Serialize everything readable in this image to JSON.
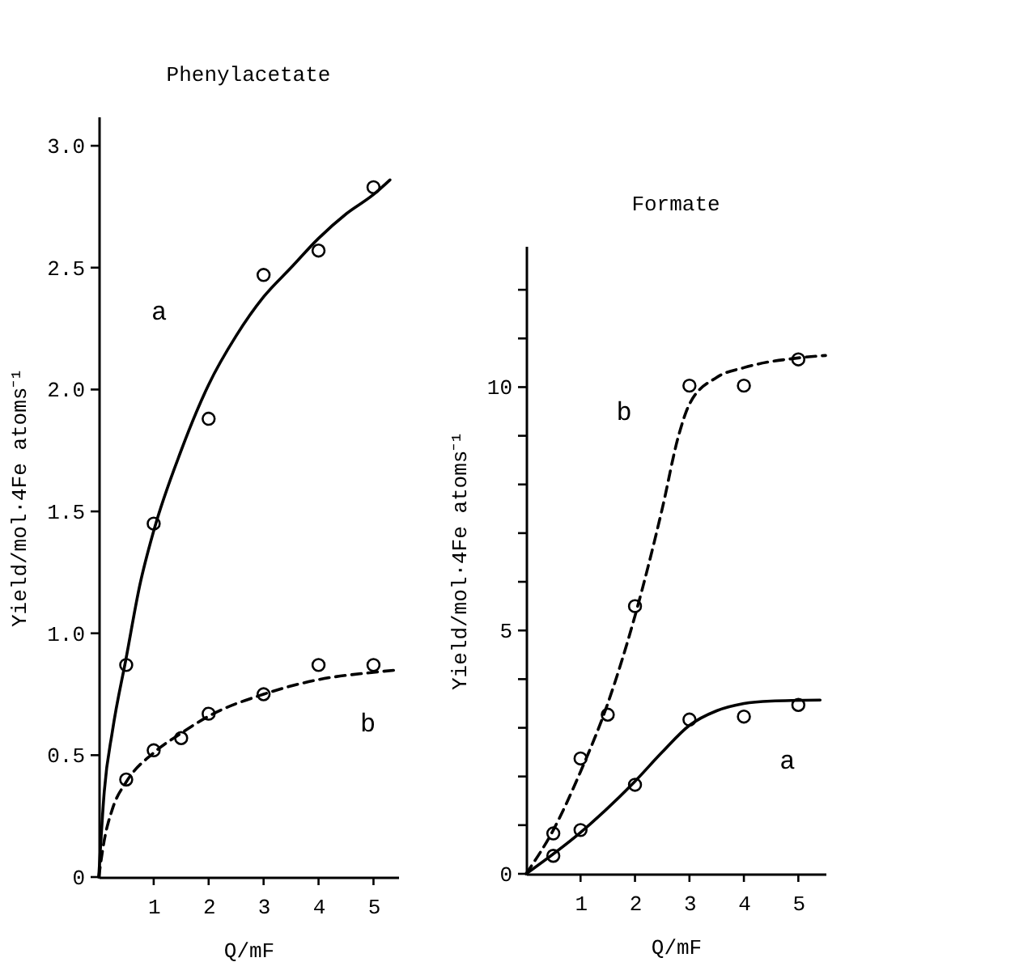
{
  "chart_data": [
    {
      "type": "scatter",
      "title": "Phenylacetate",
      "xlabel": "Q/mF",
      "ylabel": "Yield/mol·4Fe atoms⁻¹",
      "xlim": [
        0,
        5.45
      ],
      "ylim": [
        0,
        3.12
      ],
      "xticks": [
        1,
        2,
        3,
        4,
        5
      ],
      "yticks": [
        {
          "value": 0,
          "label": "0"
        },
        {
          "value": 0.5,
          "label": "0.5"
        },
        {
          "value": 1,
          "label": "1.0"
        },
        {
          "value": 1.5,
          "label": "1.5"
        },
        {
          "value": 2,
          "label": "2.0"
        },
        {
          "value": 2.5,
          "label": "2.5"
        },
        {
          "value": 3,
          "label": "3.0"
        }
      ],
      "grid": false,
      "series": [
        {
          "type": "scatter",
          "marker": "circle",
          "color": "#000000",
          "x": [
            0.5,
            1,
            2,
            3,
            4,
            5
          ],
          "values": [
            0.87,
            1.45,
            1.88,
            2.47,
            2.57,
            2.83
          ]
        },
        {
          "type": "line",
          "name": "a",
          "marker": "none",
          "line_style": "solid",
          "color": "#000000",
          "x": [
            0,
            0.1,
            0.25,
            0.5,
            0.75,
            1,
            1.5,
            2,
            2.5,
            3,
            3.5,
            4,
            4.5,
            5,
            5.3
          ],
          "values": [
            0,
            0.35,
            0.6,
            0.9,
            1.2,
            1.42,
            1.75,
            2.02,
            2.22,
            2.38,
            2.5,
            2.62,
            2.72,
            2.8,
            2.86
          ]
        },
        {
          "type": "scatter",
          "marker": "circle",
          "color": "#000000",
          "x": [
            0.5,
            1,
            1.5,
            2,
            3,
            4,
            5
          ],
          "values": [
            0.4,
            0.52,
            0.57,
            0.67,
            0.75,
            0.87,
            0.87
          ]
        },
        {
          "type": "line",
          "name": "b",
          "marker": "none",
          "line_style": "dashed",
          "color": "#000000",
          "x": [
            0,
            0.1,
            0.25,
            0.5,
            1,
            1.5,
            2,
            3,
            4,
            5,
            5.45
          ],
          "values": [
            0,
            0.15,
            0.28,
            0.39,
            0.51,
            0.59,
            0.66,
            0.75,
            0.81,
            0.84,
            0.85
          ]
        }
      ]
    },
    {
      "type": "scatter",
      "title": "Formate",
      "xlabel": "Q/mF",
      "ylabel": "Yield/mol·4Fe atoms⁻¹",
      "xlim": [
        0,
        5.5
      ],
      "ylim": [
        0,
        12.9
      ],
      "xticks": [
        1,
        2,
        3,
        4,
        5
      ],
      "yticks": [
        0,
        {
          "value": 1,
          "label": null
        },
        {
          "value": 2,
          "label": null
        },
        {
          "value": 3,
          "label": null
        },
        {
          "value": 4,
          "label": null
        },
        5,
        {
          "value": 6,
          "label": null
        },
        {
          "value": 7,
          "label": null
        },
        {
          "value": 8,
          "label": null
        },
        {
          "value": 9,
          "label": null
        },
        10,
        {
          "value": 11,
          "label": null
        },
        {
          "value": 12,
          "label": null
        }
      ],
      "grid": false,
      "series": [
        {
          "type": "scatter",
          "marker": "circle",
          "color": "#000000",
          "x": [
            0.5,
            1,
            2,
            3,
            4,
            5
          ],
          "values": [
            0.37,
            0.9,
            1.83,
            3.17,
            3.23,
            3.47
          ]
        },
        {
          "type": "line",
          "name": "a",
          "marker": "none",
          "line_style": "solid",
          "color": "#000000",
          "x": [
            0,
            1,
            2,
            2.5,
            3,
            3.5,
            4,
            4.5,
            5.4
          ],
          "values": [
            0,
            0.85,
            1.9,
            2.5,
            3.05,
            3.35,
            3.5,
            3.55,
            3.57
          ]
        },
        {
          "type": "scatter",
          "marker": "circle",
          "color": "#000000",
          "x": [
            0.5,
            1,
            1.5,
            2,
            3,
            4,
            5
          ],
          "values": [
            0.83,
            2.37,
            3.27,
            5.5,
            10.03,
            10.03,
            10.57
          ]
        },
        {
          "type": "line",
          "name": "b",
          "marker": "none",
          "line_style": "dashed",
          "color": "#000000",
          "x": [
            0,
            0.5,
            1,
            1.5,
            2,
            2.5,
            2.8,
            3,
            3.5,
            4,
            5,
            5.5
          ],
          "values": [
            0,
            0.9,
            2.1,
            3.5,
            5.3,
            7.5,
            9.0,
            9.65,
            10.2,
            10.4,
            10.6,
            10.65
          ]
        }
      ]
    }
  ]
}
